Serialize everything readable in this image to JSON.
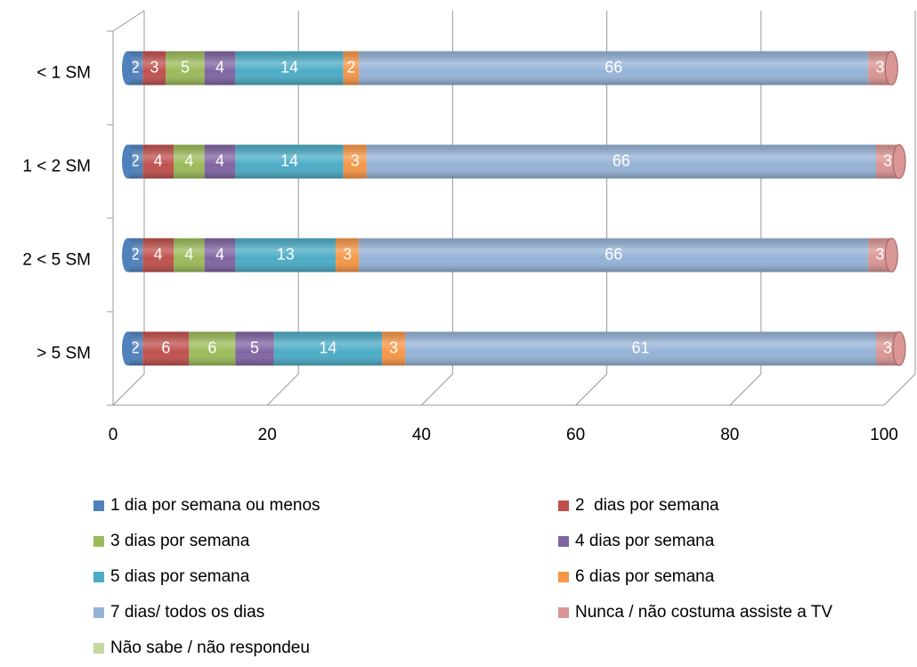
{
  "chart_data": {
    "type": "bar",
    "orientation": "horizontal",
    "stacked": true,
    "categories": [
      "< 1 SM",
      "1 < 2 SM",
      "2 < 5 SM",
      "> 5 SM"
    ],
    "series": [
      {
        "name": "1 dia por semana ou menos",
        "color": "#4f81bd",
        "values": [
          2,
          2,
          2,
          2
        ]
      },
      {
        "name": "2  dias por semana",
        "color": "#c0504d",
        "values": [
          3,
          4,
          4,
          6
        ]
      },
      {
        "name": "3 dias por semana",
        "color": "#9bbb59",
        "values": [
          5,
          4,
          4,
          6
        ]
      },
      {
        "name": "4 dias por semana",
        "color": "#8064a2",
        "values": [
          4,
          4,
          4,
          5
        ]
      },
      {
        "name": "5 dias por semana",
        "color": "#4bacc6",
        "values": [
          14,
          14,
          13,
          14
        ]
      },
      {
        "name": "6 dias por semana",
        "color": "#f79646",
        "values": [
          2,
          3,
          3,
          3
        ]
      },
      {
        "name": "7 dias/ todos os dias",
        "color": "#95b3d7",
        "values": [
          66,
          66,
          66,
          61
        ]
      },
      {
        "name": "Nunca / não costuma assiste a TV",
        "color": "#d99694",
        "values": [
          3,
          3,
          3,
          3
        ]
      },
      {
        "name": "Não sabe / não respondeu",
        "color": "#c3d69b",
        "values": [
          null,
          null,
          null,
          null
        ]
      }
    ],
    "xlim": [
      0,
      100
    ],
    "xticks": [
      0,
      20,
      40,
      60,
      80,
      100
    ],
    "grid": true,
    "legend": "bottom"
  }
}
